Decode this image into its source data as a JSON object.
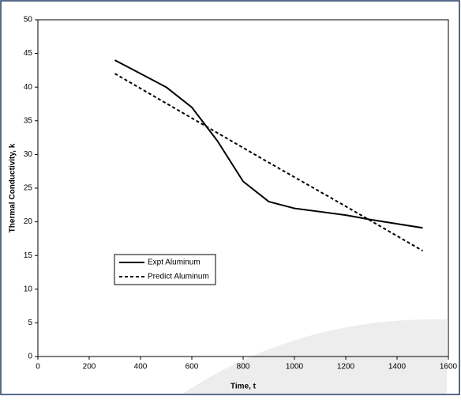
{
  "chart_data": {
    "type": "line",
    "x_label": "Time, t",
    "y_label": "Thermal Conductivity, k",
    "xlim": [
      0,
      1600
    ],
    "xticks": [
      0,
      200,
      400,
      600,
      800,
      1000,
      1200,
      1400,
      1600
    ],
    "ylim": [
      0,
      50
    ],
    "yticks": [
      0,
      5,
      10,
      15,
      20,
      25,
      30,
      35,
      40,
      45,
      50
    ],
    "grid": false,
    "series": [
      {
        "name": "Expt Aluminum",
        "color": "#000000",
        "dash": false,
        "x": [
          300,
          400,
          500,
          600,
          700,
          800,
          900,
          1000,
          1100,
          1200,
          1300,
          1400,
          1500
        ],
        "values": [
          44,
          42,
          40,
          37,
          32,
          26,
          23,
          22,
          21.5,
          21,
          20.3,
          19.7,
          19.1
        ]
      },
      {
        "name": "Predict Aluminum",
        "color": "#000000",
        "dash": true,
        "x": [
          300,
          600,
          900,
          1200,
          1500
        ],
        "values": [
          42,
          35.4,
          28.8,
          22.3,
          15.7
        ]
      }
    ]
  }
}
